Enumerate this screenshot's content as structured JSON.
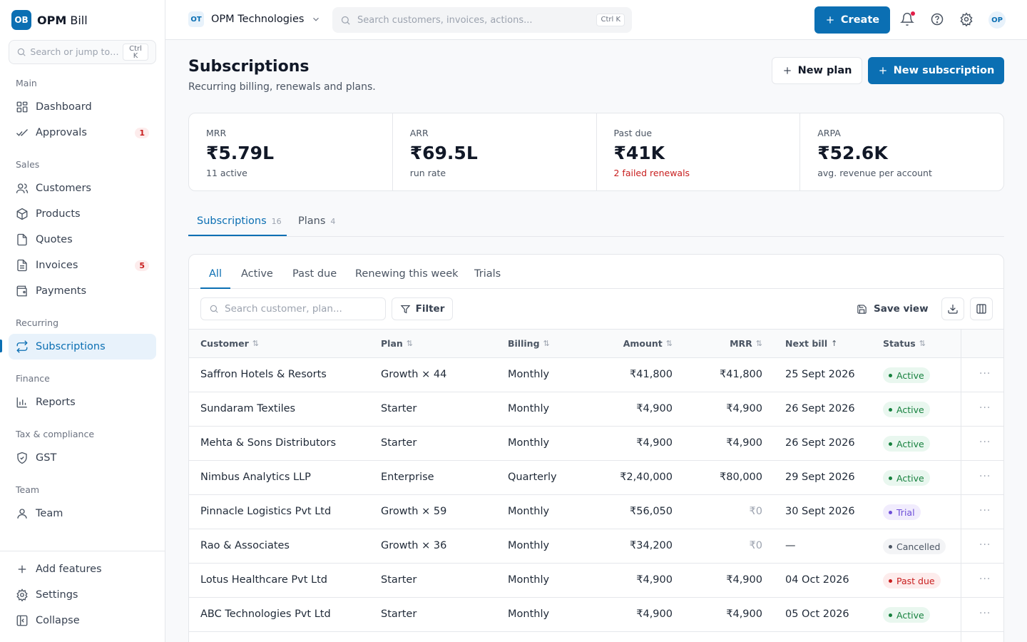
{
  "brand": {
    "logo": "OB",
    "name_bold": "OPM",
    "name_rest": " Bill"
  },
  "sidebar": {
    "search_placeholder": "Search or jump to…",
    "search_shortcut": "Ctrl K",
    "sections": {
      "main": "Main",
      "sales": "Sales",
      "recurring": "Recurring",
      "finance": "Finance",
      "tax": "Tax & compliance",
      "team": "Team"
    },
    "items": {
      "dashboard": {
        "label": "Dashboard",
        "icon": "grid-icon"
      },
      "approvals": {
        "label": "Approvals",
        "icon": "check-icon",
        "badge": "1"
      },
      "customers": {
        "label": "Customers",
        "icon": "users-icon"
      },
      "products": {
        "label": "Products",
        "icon": "box-icon"
      },
      "quotes": {
        "label": "Quotes",
        "icon": "file-icon"
      },
      "invoices": {
        "label": "Invoices",
        "icon": "file-text-icon",
        "badge": "5"
      },
      "payments": {
        "label": "Payments",
        "icon": "wallet-icon"
      },
      "subscriptions": {
        "label": "Subscriptions",
        "icon": "repeat-icon"
      },
      "reports": {
        "label": "Reports",
        "icon": "bar-chart-icon"
      },
      "gst": {
        "label": "GST",
        "icon": "shield-icon"
      },
      "team": {
        "label": "Team",
        "icon": "user-icon"
      }
    },
    "footer": {
      "add_features": "Add features",
      "settings": "Settings",
      "collapse": "Collapse"
    }
  },
  "topbar": {
    "org_logo": "OT",
    "org_name": "OPM Technologies",
    "search_placeholder": "Search customers, invoices, actions...",
    "search_shortcut": "Ctrl K",
    "create_label": "Create",
    "avatar": "OP"
  },
  "page": {
    "title": "Subscriptions",
    "subtitle": "Recurring billing, renewals and plans.",
    "new_plan_label": "New plan",
    "new_subscription_label": "New subscription"
  },
  "stats": [
    {
      "label": "MRR",
      "value": "₹5.79L",
      "sub": "11 active",
      "danger": false
    },
    {
      "label": "ARR",
      "value": "₹69.5L",
      "sub": "run rate",
      "danger": false
    },
    {
      "label": "Past due",
      "value": "₹41K",
      "sub": "2 failed renewals",
      "danger": true
    },
    {
      "label": "ARPA",
      "value": "₹52.6K",
      "sub": "avg. revenue per account",
      "danger": false
    }
  ],
  "main_tabs": [
    {
      "label": "Subscriptions",
      "count": "16"
    },
    {
      "label": "Plans",
      "count": "4"
    }
  ],
  "filter_tabs": [
    "All",
    "Active",
    "Past due",
    "Renewing this week",
    "Trials"
  ],
  "toolbar": {
    "search_placeholder": "Search customer, plan...",
    "filter_label": "Filter",
    "save_view_label": "Save view"
  },
  "table": {
    "columns": [
      "Customer",
      "Plan",
      "Billing",
      "Amount",
      "MRR",
      "Next bill",
      "Status"
    ],
    "rows": [
      {
        "customer": "Saffron Hotels & Resorts",
        "plan": "Growth × 44",
        "billing": "Monthly",
        "amount": "₹41,800",
        "mrr": "₹41,800",
        "next_bill": "25 Sept 2026",
        "status": "Active",
        "status_kind": "active"
      },
      {
        "customer": "Sundaram Textiles",
        "plan": "Starter",
        "billing": "Monthly",
        "amount": "₹4,900",
        "mrr": "₹4,900",
        "next_bill": "26 Sept 2026",
        "status": "Active",
        "status_kind": "active"
      },
      {
        "customer": "Mehta & Sons Distributors",
        "plan": "Starter",
        "billing": "Monthly",
        "amount": "₹4,900",
        "mrr": "₹4,900",
        "next_bill": "26 Sept 2026",
        "status": "Active",
        "status_kind": "active"
      },
      {
        "customer": "Nimbus Analytics LLP",
        "plan": "Enterprise",
        "billing": "Quarterly",
        "amount": "₹2,40,000",
        "mrr": "₹80,000",
        "next_bill": "29 Sept 2026",
        "status": "Active",
        "status_kind": "active"
      },
      {
        "customer": "Pinnacle Logistics Pvt Ltd",
        "plan": "Growth × 59",
        "billing": "Monthly",
        "amount": "₹56,050",
        "mrr": "₹0",
        "next_bill": "30 Sept 2026",
        "status": "Trial",
        "status_kind": "trial"
      },
      {
        "customer": "Rao & Associates",
        "plan": "Growth × 36",
        "billing": "Monthly",
        "amount": "₹34,200",
        "mrr": "₹0",
        "next_bill": "—",
        "status": "Cancelled",
        "status_kind": "cancelled"
      },
      {
        "customer": "Lotus Healthcare Pvt Ltd",
        "plan": "Starter",
        "billing": "Monthly",
        "amount": "₹4,900",
        "mrr": "₹4,900",
        "next_bill": "04 Oct 2026",
        "status": "Past due",
        "status_kind": "pastdue"
      },
      {
        "customer": "ABC Technologies Pvt Ltd",
        "plan": "Starter",
        "billing": "Monthly",
        "amount": "₹4,900",
        "mrr": "₹4,900",
        "next_bill": "05 Oct 2026",
        "status": "Active",
        "status_kind": "active"
      }
    ]
  },
  "colors": {
    "accent": "#0b6fb3",
    "success": "#15803d",
    "danger": "#c81e1e",
    "trial": "#6d4ed8"
  }
}
